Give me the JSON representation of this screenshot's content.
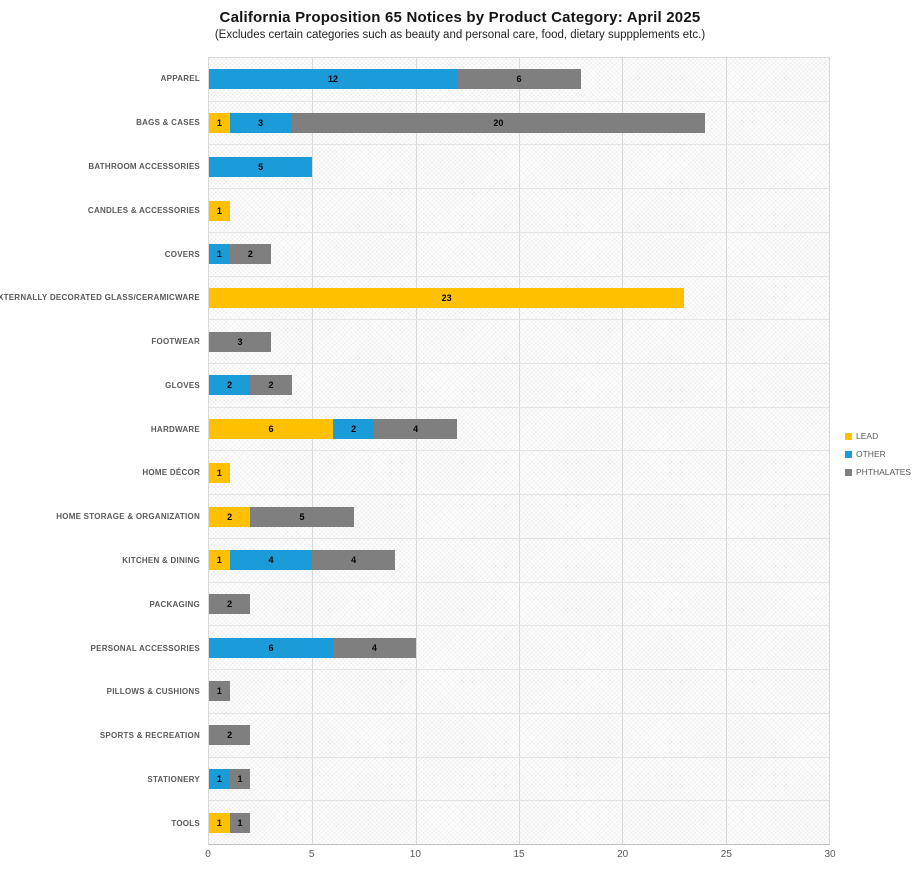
{
  "chart_data": {
    "type": "bar",
    "orientation": "horizontal",
    "stacked": true,
    "title": "California Proposition 65 Notices by Product Category: April 2025",
    "subtitle": "(Excludes certain categories such as beauty and personal care, food, dietary suppplements etc.)",
    "categories": [
      "APPAREL",
      "BAGS & CASES",
      "BATHROOM ACCESSORIES",
      "CANDLES & ACCESSORIES",
      "COVERS",
      "EXTERNALLY DECORATED GLASS/CERAMICWARE",
      "FOOTWEAR",
      "GLOVES",
      "HARDWARE",
      "HOME DÉCOR",
      "HOME STORAGE & ORGANIZATION",
      "KITCHEN & DINING",
      "PACKAGING",
      "PERSONAL ACCESSORIES",
      "PILLOWS & CUSHIONS",
      "SPORTS & RECREATION",
      "STATIONERY",
      "TOOLS"
    ],
    "series": [
      {
        "name": "LEAD",
        "color": "#FFC000",
        "values": [
          0,
          1,
          0,
          1,
          0,
          23,
          0,
          0,
          6,
          1,
          2,
          1,
          0,
          0,
          0,
          0,
          0,
          1
        ]
      },
      {
        "name": "OTHER",
        "color": "#1B9CD8",
        "values": [
          12,
          3,
          5,
          0,
          1,
          0,
          0,
          2,
          2,
          0,
          0,
          4,
          0,
          6,
          0,
          0,
          1,
          0
        ]
      },
      {
        "name": "PHTHALATES",
        "color": "#7F7F7F",
        "values": [
          6,
          20,
          0,
          0,
          2,
          0,
          3,
          2,
          4,
          0,
          5,
          4,
          2,
          4,
          1,
          2,
          1,
          1
        ]
      }
    ],
    "xlim": [
      0,
      30
    ],
    "xticks": [
      0,
      5,
      10,
      15,
      20,
      25,
      30
    ],
    "grid": true,
    "legend_position": "right",
    "data_labels": true
  }
}
